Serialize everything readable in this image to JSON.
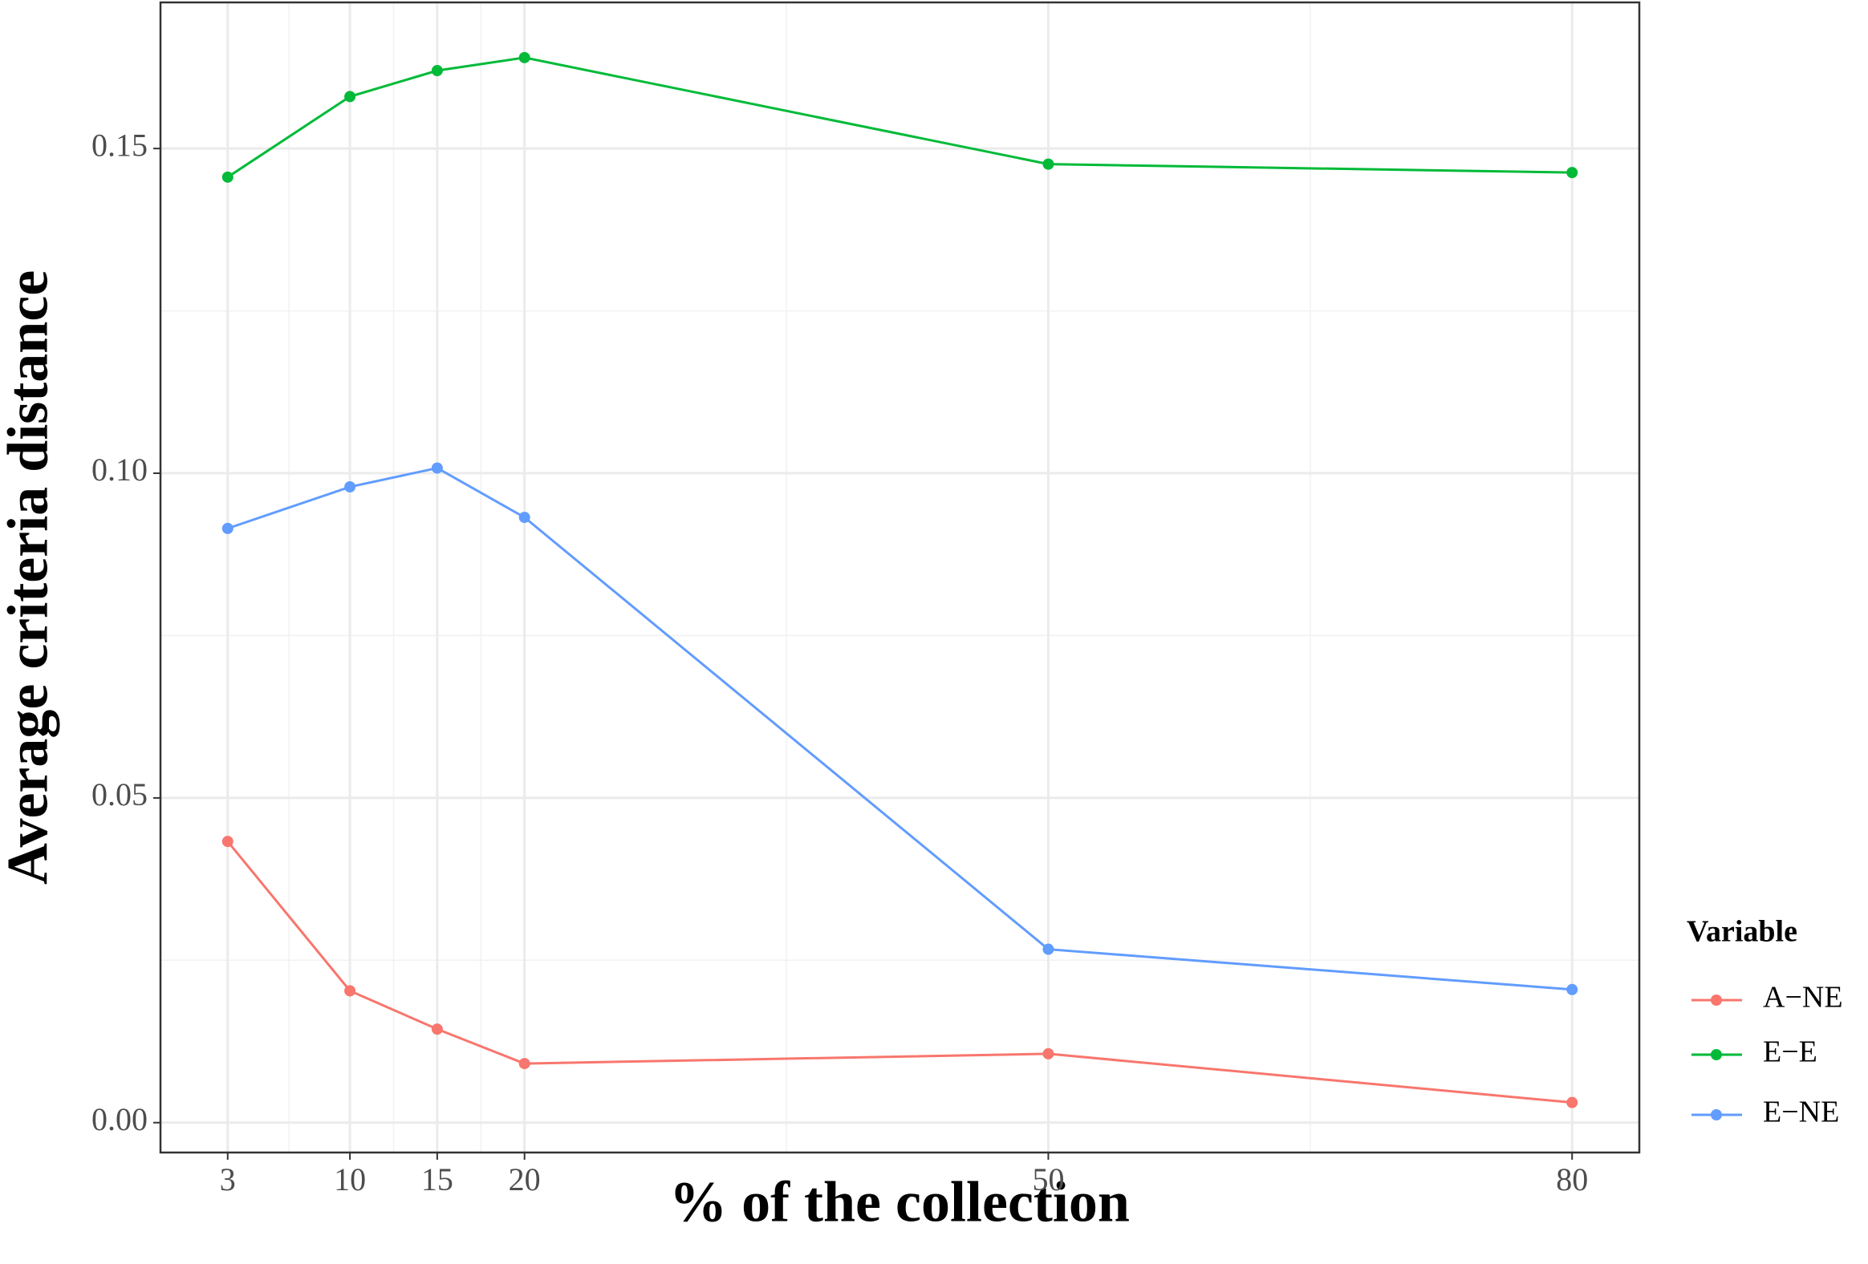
{
  "chart_data": {
    "type": "line",
    "x_label": "% of the collection",
    "y_label": "Average criteria distance",
    "x": [
      3,
      10,
      15,
      20,
      50,
      80
    ],
    "series": [
      {
        "name": "A−NE",
        "color": "#F8766D",
        "values": [
          0.0433,
          0.0203,
          0.0144,
          0.0091,
          0.0106,
          0.0031
        ]
      },
      {
        "name": "E−E",
        "color": "#00BA38",
        "values": [
          0.1456,
          0.158,
          0.162,
          0.164,
          0.1476,
          0.1463
        ]
      },
      {
        "name": "E−NE",
        "color": "#619CFF",
        "values": [
          0.0915,
          0.0979,
          0.1008,
          0.0932,
          0.0267,
          0.0205
        ]
      }
    ],
    "legend_title": "Variable",
    "legend": "right",
    "xlim": [
      -0.85,
      83.85
    ],
    "ylim": [
      -0.0046,
      0.1725
    ],
    "xticks": [
      3,
      10,
      15,
      20,
      50,
      80
    ],
    "minor_xticks": [
      6.5,
      12.5,
      17.5,
      35,
      65
    ],
    "yticks": [
      {
        "value": 0,
        "label": "0.00"
      },
      {
        "value": 0.05,
        "label": "0.05"
      },
      {
        "value": 0.1,
        "label": "0.10"
      },
      {
        "value": 0.15,
        "label": "0.15"
      }
    ],
    "minor_yticks": [
      0.025,
      0.075,
      0.125
    ],
    "grid": true
  }
}
